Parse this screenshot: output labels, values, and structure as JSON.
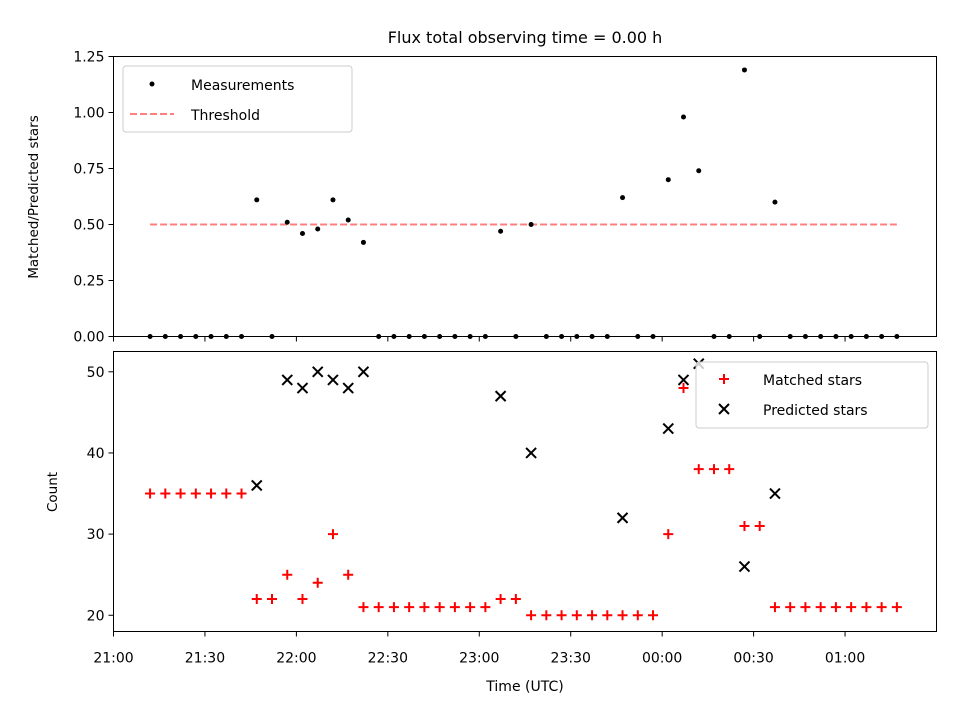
{
  "chart_data": [
    {
      "type": "scatter",
      "title": "Flux total observing time = 0.00 h",
      "ylabel": "Matched/Predicted stars",
      "ylim": [
        0,
        1.25
      ],
      "yticks": [
        0.0,
        0.25,
        0.5,
        0.75,
        1.0,
        1.25
      ],
      "ytick_labels": [
        "0.00",
        "0.25",
        "0.50",
        "0.75",
        "1.00",
        "1.25"
      ],
      "legend_position": "top-left",
      "series": [
        {
          "name": "Measurements",
          "marker": "dot",
          "color": "#000000",
          "x": [
            "21:12",
            "21:17",
            "21:22",
            "21:27",
            "21:32",
            "21:37",
            "21:42",
            "21:47",
            "21:52",
            "21:57",
            "22:02",
            "22:07",
            "22:12",
            "22:17",
            "22:22",
            "22:27",
            "22:32",
            "22:37",
            "22:42",
            "22:47",
            "22:52",
            "22:57",
            "23:02",
            "23:07",
            "23:12",
            "23:17",
            "23:22",
            "23:27",
            "23:32",
            "23:37",
            "23:42",
            "23:47",
            "23:52",
            "23:57",
            "00:02",
            "00:07",
            "00:12",
            "00:17",
            "00:22",
            "00:27",
            "00:32",
            "00:37",
            "00:42",
            "00:47",
            "00:52",
            "00:57",
            "01:02",
            "01:07",
            "01:12",
            "01:17"
          ],
          "y": [
            0,
            0,
            0,
            0,
            0,
            0,
            0,
            0.61,
            0,
            0.51,
            0.46,
            0.48,
            0.61,
            0.52,
            0.42,
            0,
            0,
            0,
            0,
            0,
            0,
            0,
            0,
            0.47,
            0,
            0.5,
            0,
            0,
            0,
            0,
            0,
            0.62,
            0,
            0,
            0.7,
            0.98,
            0.74,
            0,
            0,
            1.19,
            0,
            0.6,
            0,
            0,
            0,
            0,
            0,
            0,
            0,
            0
          ]
        },
        {
          "name": "Threshold",
          "style": "dashed",
          "color": "#ff7f7f",
          "x": [
            "21:12",
            "01:17"
          ],
          "y": [
            0.5,
            0.5
          ]
        }
      ]
    },
    {
      "type": "scatter",
      "xlabel": "Time (UTC)",
      "ylabel": "Count",
      "ylim": [
        18,
        52.5
      ],
      "yticks": [
        20,
        30,
        40,
        50
      ],
      "xlim": [
        "21:00",
        "01:30"
      ],
      "xticks": [
        "21:00",
        "21:30",
        "22:00",
        "22:30",
        "23:00",
        "23:30",
        "00:00",
        "00:30",
        "01:00"
      ],
      "legend_position": "top-right",
      "series": [
        {
          "name": "Matched stars",
          "marker": "plus",
          "color": "#ff0000",
          "x": [
            "21:12",
            "21:17",
            "21:22",
            "21:27",
            "21:32",
            "21:37",
            "21:42",
            "21:47",
            "21:52",
            "21:57",
            "22:02",
            "22:07",
            "22:12",
            "22:17",
            "22:22",
            "22:27",
            "22:32",
            "22:37",
            "22:42",
            "22:47",
            "22:52",
            "22:57",
            "23:02",
            "23:07",
            "23:12",
            "23:17",
            "23:22",
            "23:27",
            "23:32",
            "23:37",
            "23:42",
            "23:47",
            "23:52",
            "23:57",
            "00:02",
            "00:07",
            "00:12",
            "00:17",
            "00:22",
            "00:27",
            "00:32",
            "00:37",
            "00:42",
            "00:47",
            "00:52",
            "00:57",
            "01:02",
            "01:07",
            "01:12",
            "01:17"
          ],
          "y": [
            35,
            35,
            35,
            35,
            35,
            35,
            35,
            22,
            22,
            25,
            22,
            24,
            30,
            25,
            21,
            21,
            21,
            21,
            21,
            21,
            21,
            21,
            21,
            22,
            22,
            20,
            20,
            20,
            20,
            20,
            20,
            20,
            20,
            20,
            30,
            48,
            38,
            38,
            38,
            31,
            31,
            21,
            21,
            21,
            21,
            21,
            21,
            21,
            21,
            21
          ]
        },
        {
          "name": "Predicted stars",
          "marker": "x",
          "color": "#000000",
          "x": [
            "21:47",
            "21:57",
            "22:02",
            "22:07",
            "22:12",
            "22:17",
            "22:22",
            "23:07",
            "23:17",
            "23:47",
            "00:02",
            "00:07",
            "00:12",
            "00:27",
            "00:37"
          ],
          "y": [
            36,
            49,
            48,
            50,
            49,
            48,
            50,
            47,
            40,
            32,
            43,
            49,
            51,
            26,
            35
          ]
        }
      ]
    }
  ]
}
